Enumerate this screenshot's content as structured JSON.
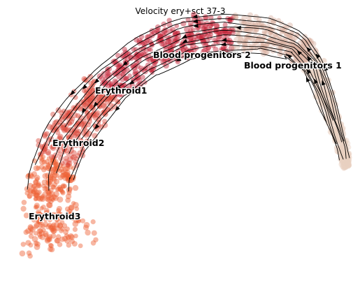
{
  "chart_data": {
    "type": "scatter",
    "title": "Velocity ery+sct 37-3",
    "axes_visible": false,
    "grid": false,
    "legend": "on data",
    "overlay": "velocity streamlines with arrowheads",
    "clusters": [
      {
        "name": "Blood progenitors 1",
        "color": "#e8d0c0"
      },
      {
        "name": "Blood progenitors 2",
        "color": "#d9b2a2"
      },
      {
        "name": "Erythroid1",
        "color": "#c3263a"
      },
      {
        "name": "Erythroid2",
        "color": "#dc4a3c"
      },
      {
        "name": "Erythroid3",
        "color": "#ee6033"
      }
    ]
  }
}
